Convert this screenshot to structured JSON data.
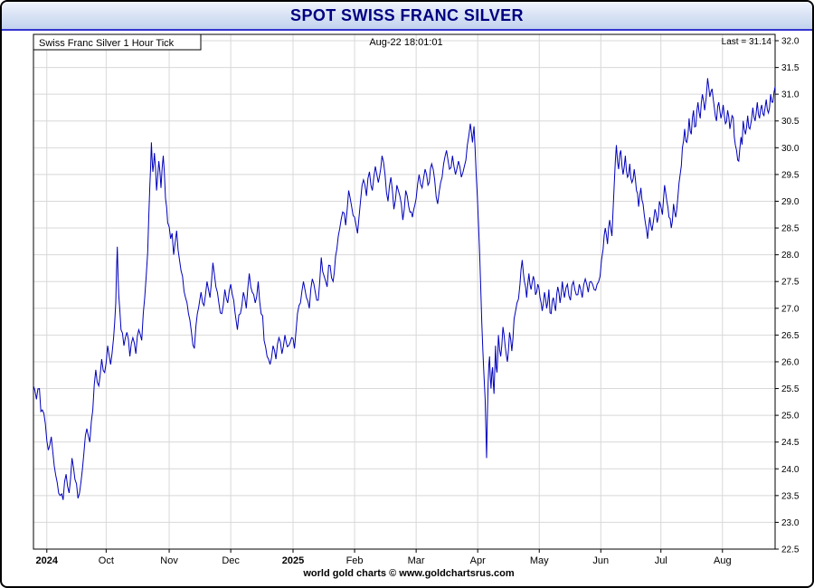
{
  "header": {
    "title": "SPOT SWISS FRANC SILVER"
  },
  "chart": {
    "series_label": "Swiss Franc Silver 1 Hour Tick",
    "timestamp": "Aug-22 18:01:01",
    "last_label": "Last = 31.14",
    "footer": "world gold charts © www.goldchartsrus.com"
  },
  "chart_data": {
    "type": "line",
    "title": "SPOT SWISS FRANC SILVER",
    "series_name": "Swiss Franc Silver 1 Hour Tick",
    "last": 31.14,
    "ylim": [
      22.5,
      32.0
    ],
    "y_tick_step": 0.5,
    "grid": true,
    "colors": {
      "line": "#0000bb",
      "grid": "#d8d8d8",
      "title": "#000080",
      "header_border": "#3434cf"
    },
    "y_ticks": [
      "32.0",
      "31.5",
      "31.0",
      "30.5",
      "30.0",
      "29.5",
      "29.0",
      "28.5",
      "28.0",
      "27.5",
      "27.0",
      "26.5",
      "26.0",
      "25.5",
      "25.0",
      "24.5",
      "24.0",
      "23.5",
      "23.0",
      "22.5"
    ],
    "x_ticks": [
      {
        "label": "2024",
        "pos": 0.018,
        "bold": true
      },
      {
        "label": "Oct",
        "pos": 0.098,
        "bold": false
      },
      {
        "label": "Nov",
        "pos": 0.183,
        "bold": false
      },
      {
        "label": "Dec",
        "pos": 0.266,
        "bold": false
      },
      {
        "label": "2025",
        "pos": 0.35,
        "bold": true
      },
      {
        "label": "Feb",
        "pos": 0.433,
        "bold": false
      },
      {
        "label": "Mar",
        "pos": 0.516,
        "bold": false
      },
      {
        "label": "Apr",
        "pos": 0.599,
        "bold": false
      },
      {
        "label": "May",
        "pos": 0.682,
        "bold": false
      },
      {
        "label": "Jun",
        "pos": 0.765,
        "bold": false
      },
      {
        "label": "Jul",
        "pos": 0.846,
        "bold": false
      },
      {
        "label": "Aug",
        "pos": 0.929,
        "bold": false
      }
    ],
    "points": [
      [
        0.0,
        25.55
      ],
      [
        0.004,
        25.3
      ],
      [
        0.008,
        25.5
      ],
      [
        0.012,
        25.1
      ],
      [
        0.016,
        24.85
      ],
      [
        0.02,
        24.35
      ],
      [
        0.024,
        24.6
      ],
      [
        0.028,
        24.05
      ],
      [
        0.032,
        23.75
      ],
      [
        0.036,
        23.5
      ],
      [
        0.04,
        23.42
      ],
      [
        0.044,
        23.9
      ],
      [
        0.048,
        23.55
      ],
      [
        0.052,
        24.2
      ],
      [
        0.056,
        23.8
      ],
      [
        0.06,
        23.45
      ],
      [
        0.064,
        23.75
      ],
      [
        0.068,
        24.3
      ],
      [
        0.072,
        24.75
      ],
      [
        0.076,
        24.5
      ],
      [
        0.08,
        25.1
      ],
      [
        0.084,
        25.85
      ],
      [
        0.088,
        25.55
      ],
      [
        0.092,
        26.05
      ],
      [
        0.096,
        25.8
      ],
      [
        0.1,
        26.3
      ],
      [
        0.104,
        25.95
      ],
      [
        0.108,
        26.45
      ],
      [
        0.111,
        27.1
      ],
      [
        0.113,
        28.15
      ],
      [
        0.115,
        27.25
      ],
      [
        0.118,
        26.6
      ],
      [
        0.122,
        26.3
      ],
      [
        0.126,
        26.55
      ],
      [
        0.13,
        26.1
      ],
      [
        0.134,
        26.45
      ],
      [
        0.138,
        26.15
      ],
      [
        0.142,
        26.6
      ],
      [
        0.146,
        26.4
      ],
      [
        0.15,
        27.2
      ],
      [
        0.154,
        28.05
      ],
      [
        0.157,
        29.3
      ],
      [
        0.159,
        30.1
      ],
      [
        0.161,
        29.55
      ],
      [
        0.163,
        29.9
      ],
      [
        0.166,
        29.2
      ],
      [
        0.169,
        29.75
      ],
      [
        0.172,
        29.25
      ],
      [
        0.175,
        29.85
      ],
      [
        0.178,
        29.05
      ],
      [
        0.181,
        28.6
      ],
      [
        0.185,
        28.3
      ],
      [
        0.189,
        28.0
      ],
      [
        0.193,
        28.45
      ],
      [
        0.197,
        27.9
      ],
      [
        0.201,
        27.6
      ],
      [
        0.205,
        27.2
      ],
      [
        0.209,
        26.9
      ],
      [
        0.213,
        26.55
      ],
      [
        0.217,
        26.25
      ],
      [
        0.221,
        26.9
      ],
      [
        0.226,
        27.3
      ],
      [
        0.23,
        27.05
      ],
      [
        0.234,
        27.5
      ],
      [
        0.238,
        27.2
      ],
      [
        0.242,
        27.85
      ],
      [
        0.246,
        27.4
      ],
      [
        0.25,
        27.1
      ],
      [
        0.254,
        26.9
      ],
      [
        0.258,
        27.35
      ],
      [
        0.262,
        27.1
      ],
      [
        0.266,
        27.45
      ],
      [
        0.27,
        27.15
      ],
      [
        0.275,
        26.6
      ],
      [
        0.279,
        26.9
      ],
      [
        0.283,
        27.3
      ],
      [
        0.287,
        27.0
      ],
      [
        0.291,
        27.65
      ],
      [
        0.295,
        27.3
      ],
      [
        0.299,
        27.1
      ],
      [
        0.303,
        27.5
      ],
      [
        0.307,
        26.9
      ],
      [
        0.311,
        26.4
      ],
      [
        0.315,
        26.1
      ],
      [
        0.319,
        25.95
      ],
      [
        0.323,
        26.3
      ],
      [
        0.327,
        26.05
      ],
      [
        0.331,
        26.45
      ],
      [
        0.335,
        26.15
      ],
      [
        0.339,
        26.5
      ],
      [
        0.344,
        26.3
      ],
      [
        0.348,
        26.45
      ],
      [
        0.352,
        26.25
      ],
      [
        0.356,
        26.9
      ],
      [
        0.36,
        27.1
      ],
      [
        0.364,
        27.5
      ],
      [
        0.368,
        27.2
      ],
      [
        0.372,
        27.0
      ],
      [
        0.376,
        27.55
      ],
      [
        0.38,
        27.3
      ],
      [
        0.384,
        27.15
      ],
      [
        0.388,
        27.95
      ],
      [
        0.392,
        27.6
      ],
      [
        0.396,
        27.4
      ],
      [
        0.4,
        27.8
      ],
      [
        0.404,
        27.5
      ],
      [
        0.409,
        28.1
      ],
      [
        0.413,
        28.5
      ],
      [
        0.417,
        28.8
      ],
      [
        0.421,
        28.55
      ],
      [
        0.425,
        29.2
      ],
      [
        0.429,
        28.9
      ],
      [
        0.433,
        28.7
      ],
      [
        0.437,
        28.4
      ],
      [
        0.441,
        29.0
      ],
      [
        0.445,
        29.4
      ],
      [
        0.449,
        29.1
      ],
      [
        0.453,
        29.55
      ],
      [
        0.457,
        29.2
      ],
      [
        0.461,
        29.65
      ],
      [
        0.465,
        29.35
      ],
      [
        0.47,
        29.85
      ],
      [
        0.474,
        29.5
      ],
      [
        0.478,
        29.0
      ],
      [
        0.482,
        29.45
      ],
      [
        0.486,
        28.85
      ],
      [
        0.49,
        29.3
      ],
      [
        0.494,
        29.1
      ],
      [
        0.498,
        28.65
      ],
      [
        0.502,
        29.2
      ],
      [
        0.506,
        28.9
      ],
      [
        0.511,
        28.7
      ],
      [
        0.516,
        29.05
      ],
      [
        0.52,
        29.5
      ],
      [
        0.524,
        29.25
      ],
      [
        0.528,
        29.6
      ],
      [
        0.532,
        29.3
      ],
      [
        0.537,
        29.7
      ],
      [
        0.541,
        29.4
      ],
      [
        0.545,
        28.95
      ],
      [
        0.549,
        29.35
      ],
      [
        0.553,
        29.7
      ],
      [
        0.557,
        29.95
      ],
      [
        0.561,
        29.6
      ],
      [
        0.565,
        29.85
      ],
      [
        0.569,
        29.5
      ],
      [
        0.573,
        29.75
      ],
      [
        0.577,
        29.45
      ],
      [
        0.581,
        29.65
      ],
      [
        0.585,
        30.05
      ],
      [
        0.589,
        30.45
      ],
      [
        0.592,
        30.1
      ],
      [
        0.594,
        30.4
      ],
      [
        0.597,
        29.5
      ],
      [
        0.6,
        28.6
      ],
      [
        0.603,
        27.4
      ],
      [
        0.606,
        26.2
      ],
      [
        0.609,
        25.3
      ],
      [
        0.611,
        24.2
      ],
      [
        0.613,
        25.6
      ],
      [
        0.615,
        26.1
      ],
      [
        0.617,
        25.5
      ],
      [
        0.619,
        25.9
      ],
      [
        0.621,
        25.4
      ],
      [
        0.623,
        26.3
      ],
      [
        0.625,
        25.8
      ],
      [
        0.627,
        26.5
      ],
      [
        0.63,
        26.1
      ],
      [
        0.633,
        26.65
      ],
      [
        0.636,
        26.3
      ],
      [
        0.639,
        26.0
      ],
      [
        0.642,
        26.55
      ],
      [
        0.645,
        26.2
      ],
      [
        0.648,
        26.8
      ],
      [
        0.652,
        27.1
      ],
      [
        0.656,
        27.45
      ],
      [
        0.659,
        27.9
      ],
      [
        0.662,
        27.5
      ],
      [
        0.665,
        27.2
      ],
      [
        0.668,
        27.65
      ],
      [
        0.671,
        27.35
      ],
      [
        0.674,
        27.6
      ],
      [
        0.677,
        27.25
      ],
      [
        0.68,
        27.45
      ],
      [
        0.683,
        27.2
      ],
      [
        0.686,
        26.95
      ],
      [
        0.689,
        27.3
      ],
      [
        0.692,
        27.0
      ],
      [
        0.695,
        27.35
      ],
      [
        0.698,
        26.9
      ],
      [
        0.701,
        27.2
      ],
      [
        0.704,
        26.95
      ],
      [
        0.707,
        27.4
      ],
      [
        0.71,
        27.1
      ],
      [
        0.713,
        27.5
      ],
      [
        0.716,
        27.2
      ],
      [
        0.72,
        27.45
      ],
      [
        0.724,
        27.15
      ],
      [
        0.728,
        27.5
      ],
      [
        0.732,
        27.25
      ],
      [
        0.736,
        27.45
      ],
      [
        0.74,
        27.2
      ],
      [
        0.744,
        27.55
      ],
      [
        0.748,
        27.3
      ],
      [
        0.752,
        27.5
      ],
      [
        0.756,
        27.35
      ],
      [
        0.76,
        27.45
      ],
      [
        0.764,
        27.6
      ],
      [
        0.768,
        28.1
      ],
      [
        0.771,
        28.5
      ],
      [
        0.774,
        28.2
      ],
      [
        0.777,
        28.65
      ],
      [
        0.78,
        28.35
      ],
      [
        0.783,
        29.3
      ],
      [
        0.786,
        30.05
      ],
      [
        0.789,
        29.6
      ],
      [
        0.792,
        29.95
      ],
      [
        0.795,
        29.5
      ],
      [
        0.798,
        29.85
      ],
      [
        0.801,
        29.45
      ],
      [
        0.804,
        29.7
      ],
      [
        0.807,
        29.35
      ],
      [
        0.81,
        29.6
      ],
      [
        0.813,
        29.2
      ],
      [
        0.816,
        28.9
      ],
      [
        0.819,
        29.25
      ],
      [
        0.822,
        28.95
      ],
      [
        0.825,
        28.6
      ],
      [
        0.828,
        28.3
      ],
      [
        0.831,
        28.7
      ],
      [
        0.834,
        28.45
      ],
      [
        0.838,
        28.85
      ],
      [
        0.841,
        28.6
      ],
      [
        0.844,
        29.0
      ],
      [
        0.848,
        28.75
      ],
      [
        0.851,
        29.3
      ],
      [
        0.854,
        29.0
      ],
      [
        0.857,
        28.7
      ],
      [
        0.86,
        28.5
      ],
      [
        0.863,
        28.95
      ],
      [
        0.866,
        28.7
      ],
      [
        0.869,
        29.1
      ],
      [
        0.872,
        29.5
      ],
      [
        0.875,
        30.0
      ],
      [
        0.878,
        30.35
      ],
      [
        0.881,
        30.1
      ],
      [
        0.884,
        30.55
      ],
      [
        0.887,
        30.25
      ],
      [
        0.89,
        30.7
      ],
      [
        0.893,
        30.4
      ],
      [
        0.896,
        30.85
      ],
      [
        0.899,
        30.55
      ],
      [
        0.902,
        31.0
      ],
      [
        0.905,
        30.7
      ],
      [
        0.909,
        31.3
      ],
      [
        0.912,
        30.95
      ],
      [
        0.915,
        31.1
      ],
      [
        0.918,
        30.75
      ],
      [
        0.921,
        30.5
      ],
      [
        0.924,
        30.85
      ],
      [
        0.927,
        30.55
      ],
      [
        0.93,
        30.8
      ],
      [
        0.933,
        30.45
      ],
      [
        0.936,
        30.7
      ],
      [
        0.939,
        30.35
      ],
      [
        0.942,
        30.6
      ],
      [
        0.945,
        30.2
      ],
      [
        0.948,
        29.95
      ],
      [
        0.951,
        29.75
      ],
      [
        0.954,
        30.2
      ],
      [
        0.957,
        30.5
      ],
      [
        0.96,
        30.25
      ],
      [
        0.963,
        30.6
      ],
      [
        0.966,
        30.35
      ],
      [
        0.97,
        30.75
      ],
      [
        0.973,
        30.5
      ],
      [
        0.976,
        30.85
      ],
      [
        0.979,
        30.55
      ],
      [
        0.982,
        30.8
      ],
      [
        0.985,
        30.6
      ],
      [
        0.988,
        30.9
      ],
      [
        0.991,
        30.65
      ],
      [
        0.994,
        31.0
      ],
      [
        0.997,
        30.85
      ],
      [
        1.0,
        31.14
      ]
    ]
  }
}
